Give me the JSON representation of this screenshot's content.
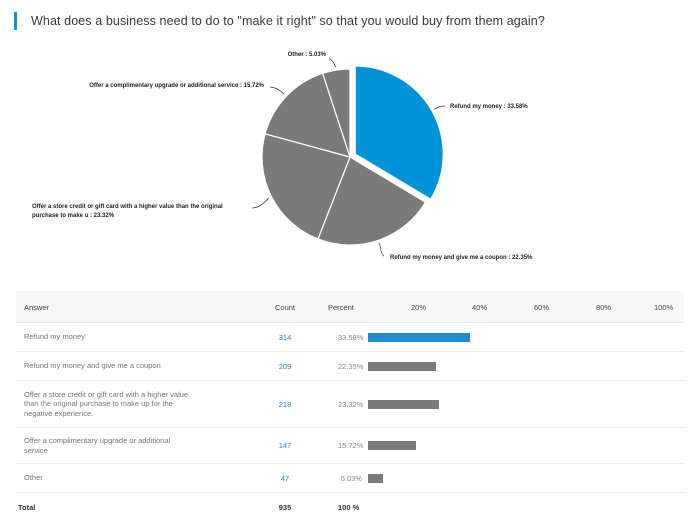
{
  "question": "What does a business need to do to \"make it right\" so that you would buy from them again?",
  "colors": {
    "accent": "#1a8fd6",
    "neutral": "#7a7a7a"
  },
  "chart_data": {
    "type": "pie",
    "slices": [
      {
        "label": "Refund my money : 33.58%",
        "value": 33.58,
        "color": "#0092d9"
      },
      {
        "label": "Refund my money and give me a coupon : 22.35%",
        "value": 22.35,
        "color": "#7a7a7a"
      },
      {
        "label_lines": [
          "Offer a store credit or gift card with a higher value than the original",
          "purchase to make u : 23.32%"
        ],
        "value": 23.32,
        "color": "#7a7a7a"
      },
      {
        "label": "Offer a complimentary upgrade or additional service : 15.72%",
        "value": 15.72,
        "color": "#7a7a7a"
      },
      {
        "label": "Other : 5.03%",
        "value": 5.03,
        "color": "#7a7a7a"
      }
    ]
  },
  "table": {
    "headers": {
      "answer": "Answer",
      "count": "Count",
      "percent": "Percent",
      "ticks": [
        "20%",
        "40%",
        "60%",
        "80%",
        "100%"
      ]
    },
    "rows": [
      {
        "answer_lines": [
          "Refund my money"
        ],
        "count": "314",
        "percent_label": "33.58%",
        "percent": 33.58,
        "highlight": true
      },
      {
        "answer_lines": [
          "Refund my money and give me a coupon"
        ],
        "count": "209",
        "percent_label": "22.35%",
        "percent": 22.35,
        "highlight": false
      },
      {
        "answer_lines": [
          "Offer a store credit or gift card with a higher value",
          "than the original purchase to make up for the",
          "negative experience."
        ],
        "count": "218",
        "percent_label": "23.32%",
        "percent": 23.32,
        "highlight": false
      },
      {
        "answer_lines": [
          "Offer a complimentary upgrade or additional",
          "service"
        ],
        "count": "147",
        "percent_label": "15.72%",
        "percent": 15.72,
        "highlight": false
      },
      {
        "answer_lines": [
          "Other"
        ],
        "count": "47",
        "percent_label": "5.03%",
        "percent": 5.03,
        "highlight": false
      }
    ],
    "total": {
      "label": "Total",
      "count": "935",
      "percent": "100 %"
    }
  }
}
